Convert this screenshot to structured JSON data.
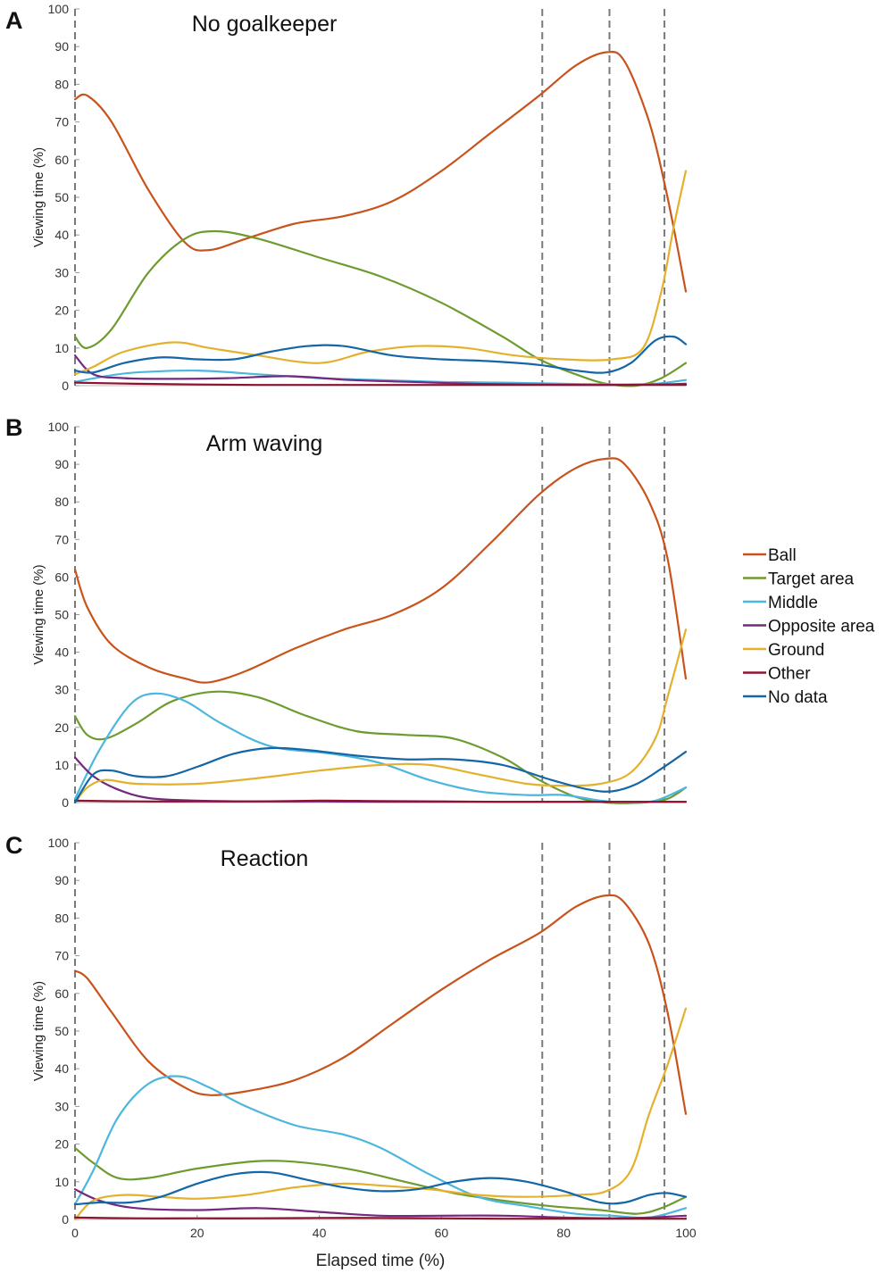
{
  "chart_data": [
    {
      "type": "line",
      "panel_label": "A",
      "title": "No goalkeeper",
      "ylabel": "Viewing time (%)",
      "xlabel": "",
      "xlim": [
        0,
        100
      ],
      "ylim": [
        0,
        100
      ],
      "yticks": [
        0,
        10,
        20,
        30,
        40,
        50,
        60,
        70,
        80,
        90,
        100
      ],
      "xticks": [],
      "vlines": [
        0,
        76.5,
        87.5,
        96.5
      ],
      "series": [
        {
          "name": "Ball",
          "x": [
            0,
            2,
            6,
            12,
            18,
            22,
            28,
            36,
            44,
            52,
            60,
            68,
            76,
            82,
            87,
            90,
            94,
            97,
            100
          ],
          "values": [
            76,
            77,
            70,
            52,
            38,
            36,
            39,
            43,
            45,
            49,
            57,
            67,
            77,
            85,
            88.5,
            86,
            70,
            50,
            25
          ]
        },
        {
          "name": "Target area",
          "x": [
            0,
            2,
            6,
            12,
            18,
            23,
            30,
            40,
            50,
            60,
            70,
            76,
            82,
            87,
            92,
            96,
            100
          ],
          "values": [
            13,
            10,
            15,
            30,
            39,
            41,
            39,
            34,
            29,
            22,
            13,
            7,
            3,
            0.5,
            0,
            2,
            6
          ]
        },
        {
          "name": "Middle",
          "x": [
            0,
            5,
            10,
            20,
            30,
            40,
            50,
            60,
            70,
            80,
            90,
            95,
            100
          ],
          "values": [
            1,
            2.5,
            3.5,
            4,
            3,
            2,
            1.5,
            1,
            0.8,
            0.5,
            0.3,
            0.5,
            1.5
          ]
        },
        {
          "name": "Opposite area",
          "x": [
            0,
            3,
            8,
            15,
            25,
            35,
            45,
            55,
            65,
            75,
            85,
            95,
            100
          ],
          "values": [
            8,
            3,
            2,
            1.8,
            2,
            2.5,
            1.5,
            1,
            0.5,
            0.3,
            0.2,
            0.3,
            0.5
          ]
        },
        {
          "name": "Ground",
          "x": [
            0,
            3,
            8,
            16,
            22,
            30,
            40,
            48,
            56,
            64,
            72,
            80,
            88,
            93,
            96,
            98,
            100
          ],
          "values": [
            3,
            5,
            9,
            11.5,
            10,
            8,
            6,
            9,
            10.5,
            10,
            8,
            7,
            7,
            10,
            25,
            42,
            57
          ]
        },
        {
          "name": "Other",
          "x": [
            0,
            10,
            20,
            30,
            40,
            50,
            60,
            70,
            80,
            90,
            100
          ],
          "values": [
            0.8,
            0.5,
            0.3,
            0.2,
            0.2,
            0.2,
            0.2,
            0.2,
            0.2,
            0.2,
            0.2
          ]
        },
        {
          "name": "No data",
          "x": [
            0,
            3,
            8,
            14,
            20,
            26,
            32,
            38,
            44,
            52,
            60,
            68,
            76,
            82,
            87,
            91,
            95,
            98,
            100
          ],
          "values": [
            4,
            3.5,
            6,
            7.5,
            7,
            7,
            9,
            10.5,
            10.5,
            8,
            7,
            6.5,
            5.5,
            4,
            3.5,
            6,
            12,
            13,
            11
          ]
        }
      ]
    },
    {
      "type": "line",
      "panel_label": "B",
      "title": "Arm waving",
      "ylabel": "Viewing time (%)",
      "xlabel": "",
      "xlim": [
        0,
        100
      ],
      "ylim": [
        0,
        100
      ],
      "yticks": [
        0,
        10,
        20,
        30,
        40,
        50,
        60,
        70,
        80,
        90,
        100
      ],
      "xticks": [],
      "vlines": [
        0,
        76.5,
        87.5,
        96.5
      ],
      "series": [
        {
          "name": "Ball",
          "x": [
            0,
            2,
            6,
            12,
            18,
            22,
            28,
            36,
            44,
            52,
            60,
            68,
            76,
            82,
            87,
            90,
            94,
            97,
            100
          ],
          "values": [
            62,
            52,
            42,
            36,
            33,
            32,
            35,
            41,
            46,
            50,
            57,
            69,
            82,
            89,
            91.5,
            90,
            80,
            65,
            33
          ]
        },
        {
          "name": "Target area",
          "x": [
            0,
            2,
            5,
            10,
            16,
            23,
            30,
            38,
            46,
            54,
            62,
            70,
            76,
            82,
            87,
            93,
            97,
            100
          ],
          "values": [
            23,
            18,
            17,
            21,
            27,
            29.5,
            28,
            23,
            19,
            18,
            17,
            12,
            6,
            1.5,
            0,
            0,
            1,
            4
          ]
        },
        {
          "name": "Middle",
          "x": [
            0,
            4,
            9,
            13,
            18,
            24,
            32,
            42,
            50,
            58,
            66,
            74,
            80,
            86,
            90,
            95,
            100
          ],
          "values": [
            1,
            14,
            26,
            29,
            27,
            21,
            15,
            13,
            10.5,
            6,
            3,
            2,
            2,
            0.5,
            0,
            0.5,
            4
          ]
        },
        {
          "name": "Opposite area",
          "x": [
            0,
            3,
            7,
            12,
            20,
            30,
            40,
            50,
            60,
            70,
            80,
            90,
            100
          ],
          "values": [
            12,
            7,
            3.5,
            1.2,
            0.5,
            0.3,
            0.3,
            0.2,
            0.2,
            0.2,
            0.2,
            0.2,
            0.2
          ]
        },
        {
          "name": "Ground",
          "x": [
            0,
            2,
            5,
            10,
            20,
            30,
            40,
            50,
            58,
            66,
            74,
            80,
            86,
            91,
            95,
            97,
            100
          ],
          "values": [
            0,
            4,
            6,
            5,
            5,
            6.5,
            8.5,
            10,
            10,
            7.5,
            5,
            4.5,
            5,
            8,
            17,
            28,
            46
          ]
        },
        {
          "name": "Other",
          "x": [
            0,
            10,
            20,
            30,
            40,
            50,
            60,
            70,
            80,
            90,
            100
          ],
          "values": [
            0.5,
            0.3,
            0.3,
            0.3,
            0.5,
            0.4,
            0.3,
            0.2,
            0.2,
            0.2,
            0.2
          ]
        },
        {
          "name": "No data",
          "x": [
            0,
            3,
            6,
            10,
            15,
            20,
            26,
            32,
            38,
            46,
            54,
            62,
            70,
            78,
            84,
            88,
            92,
            96,
            100
          ],
          "values": [
            0,
            7.5,
            8.5,
            7,
            7,
            9.5,
            13,
            14.5,
            14,
            12.5,
            11.5,
            11.5,
            10,
            6,
            3.5,
            3,
            5,
            9,
            13.5
          ]
        }
      ]
    },
    {
      "type": "line",
      "panel_label": "C",
      "title": "Reaction",
      "ylabel": "Viewing time (%)",
      "xlabel": "Elapsed time (%)",
      "xlim": [
        0,
        100
      ],
      "ylim": [
        0,
        100
      ],
      "yticks": [
        0,
        10,
        20,
        30,
        40,
        50,
        60,
        70,
        80,
        90,
        100
      ],
      "xticks": [
        0,
        20,
        40,
        60,
        80,
        100
      ],
      "vlines": [
        0,
        76.5,
        87.5,
        96.5
      ],
      "series": [
        {
          "name": "Ball",
          "x": [
            0,
            2,
            6,
            12,
            18,
            22,
            28,
            36,
            44,
            52,
            60,
            68,
            76,
            82,
            87,
            90,
            94,
            97,
            100
          ],
          "values": [
            66,
            64,
            55,
            42,
            35,
            33,
            34,
            37,
            43,
            52,
            61,
            69,
            76,
            83,
            86,
            84,
            73,
            55,
            28
          ]
        },
        {
          "name": "Target area",
          "x": [
            0,
            3,
            7,
            12,
            20,
            30,
            38,
            46,
            54,
            62,
            70,
            78,
            86,
            92,
            96,
            100
          ],
          "values": [
            19,
            15,
            11,
            11,
            13.5,
            15.5,
            15,
            13,
            10,
            7,
            5,
            3.5,
            2.5,
            1.5,
            3,
            6
          ]
        },
        {
          "name": "Middle",
          "x": [
            0,
            3,
            7,
            12,
            17,
            22,
            28,
            36,
            44,
            50,
            58,
            66,
            74,
            82,
            88,
            94,
            100
          ],
          "values": [
            4,
            13,
            27,
            36,
            38,
            35,
            30,
            25,
            22.5,
            19,
            12,
            6,
            3.5,
            1.5,
            1,
            0.5,
            3
          ]
        },
        {
          "name": "Opposite area",
          "x": [
            0,
            4,
            10,
            20,
            30,
            40,
            50,
            60,
            70,
            80,
            88,
            94,
            100
          ],
          "values": [
            8,
            5,
            3,
            2.5,
            3,
            2,
            1,
            1,
            1,
            0.5,
            0.3,
            0.5,
            1
          ]
        },
        {
          "name": "Ground",
          "x": [
            0,
            3,
            8,
            14,
            20,
            28,
            36,
            44,
            50,
            58,
            66,
            74,
            82,
            87,
            91,
            94,
            97,
            100
          ],
          "values": [
            0,
            5,
            6.5,
            6,
            5.5,
            6.5,
            8.5,
            9.5,
            9,
            8,
            6.5,
            6,
            6.5,
            7.5,
            13,
            28,
            41,
            56
          ]
        },
        {
          "name": "Other",
          "x": [
            0,
            10,
            20,
            30,
            40,
            50,
            60,
            70,
            80,
            90,
            100
          ],
          "values": [
            0.5,
            0.3,
            0.3,
            0.3,
            0.4,
            0.4,
            0.3,
            0.2,
            0.2,
            0.2,
            0.2
          ]
        },
        {
          "name": "No data",
          "x": [
            0,
            4,
            9,
            14,
            20,
            26,
            32,
            38,
            44,
            50,
            56,
            62,
            68,
            74,
            80,
            86,
            90,
            94,
            97,
            100
          ],
          "values": [
            4,
            4.5,
            4.5,
            6,
            9.5,
            12,
            12.5,
            10.5,
            8.5,
            7.5,
            8,
            10,
            11,
            10,
            7.5,
            4.5,
            4.5,
            6.5,
            7,
            6
          ]
        }
      ]
    }
  ],
  "legend": {
    "items": [
      {
        "name": "Ball",
        "color": "#C8531C"
      },
      {
        "name": "Target area",
        "color": "#6E9B30"
      },
      {
        "name": "Middle",
        "color": "#4BB6DE"
      },
      {
        "name": "Opposite area",
        "color": "#74287E"
      },
      {
        "name": "Ground",
        "color": "#E3B12D"
      },
      {
        "name": "Other",
        "color": "#8C1431"
      },
      {
        "name": "No data",
        "color": "#1466A6"
      }
    ]
  }
}
